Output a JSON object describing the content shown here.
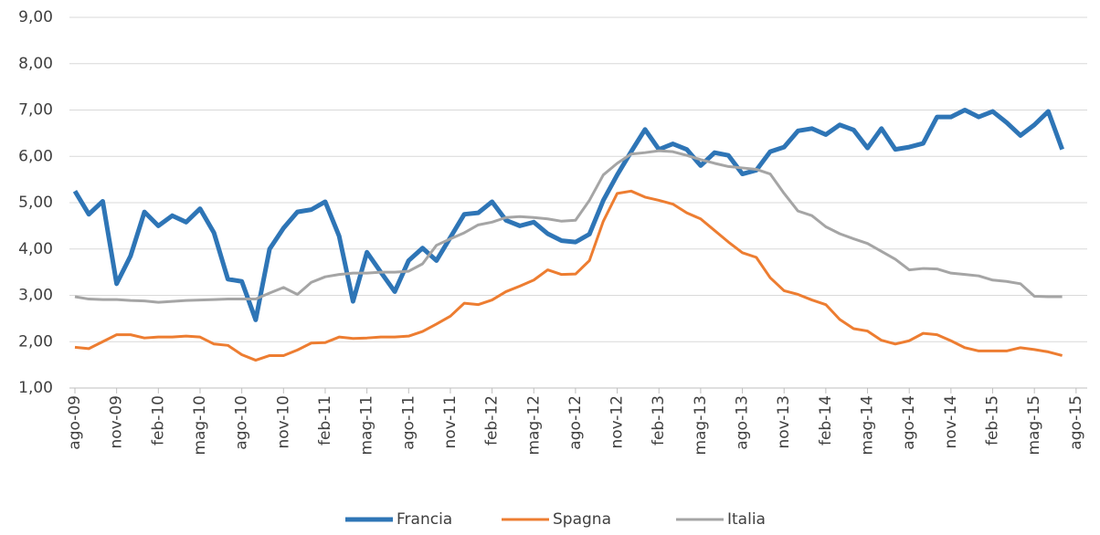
{
  "chart_data": {
    "type": "line",
    "categories": [
      "ago-09",
      null,
      null,
      "nov-09",
      null,
      null,
      "feb-10",
      null,
      null,
      "mag-10",
      null,
      null,
      "ago-10",
      null,
      null,
      "nov-10",
      null,
      null,
      "feb-11",
      null,
      null,
      "mag-11",
      null,
      null,
      "ago-11",
      null,
      null,
      "nov-11",
      null,
      null,
      "feb-12",
      null,
      null,
      "mag-12",
      null,
      null,
      "ago-12",
      null,
      null,
      "nov-12",
      null,
      null,
      "feb-13",
      null,
      null,
      "mag-13",
      null,
      null,
      "ago-13",
      null,
      null,
      "nov-13",
      null,
      null,
      "feb-14",
      null,
      null,
      "mag-14",
      null,
      null,
      "ago-14",
      null,
      null,
      "nov-14",
      null,
      null,
      "feb-15",
      null,
      null,
      "mag-15",
      null,
      null,
      "ago-15"
    ],
    "series": [
      {
        "name": "Francia",
        "color": "#2e75b6",
        "values": [
          5.25,
          4.75,
          5.03,
          3.25,
          3.85,
          4.8,
          4.5,
          4.72,
          4.58,
          4.87,
          4.35,
          3.35,
          3.3,
          2.47,
          4.0,
          4.45,
          4.8,
          4.85,
          5.02,
          4.28,
          2.87,
          3.93,
          3.5,
          3.08,
          3.75,
          4.02,
          3.75,
          4.25,
          4.75,
          4.78,
          5.02,
          4.62,
          4.5,
          4.58,
          4.33,
          4.18,
          4.15,
          4.32,
          5.05,
          5.6,
          6.1,
          6.58,
          6.15,
          6.27,
          6.15,
          5.8,
          6.08,
          6.02,
          5.62,
          5.7,
          6.1,
          6.2,
          6.55,
          6.6,
          6.47,
          6.68,
          6.57,
          6.18,
          6.6,
          6.15,
          6.2,
          6.28,
          6.85,
          6.85,
          7.0,
          6.85,
          6.97,
          6.73,
          6.45,
          6.68,
          6.97,
          6.15,
          null
        ]
      },
      {
        "name": "Spagna",
        "color": "#ed7d31",
        "values": [
          1.88,
          1.85,
          2.0,
          2.15,
          2.15,
          2.08,
          2.1,
          2.1,
          2.12,
          2.1,
          1.95,
          1.92,
          1.72,
          1.6,
          1.7,
          1.7,
          1.82,
          1.97,
          1.98,
          2.1,
          2.07,
          2.08,
          2.1,
          2.1,
          2.12,
          2.22,
          2.38,
          2.55,
          2.83,
          2.8,
          2.9,
          3.08,
          3.2,
          3.33,
          3.55,
          3.45,
          3.46,
          3.75,
          4.6,
          5.2,
          5.25,
          5.12,
          5.05,
          4.97,
          4.78,
          4.65,
          4.4,
          4.15,
          3.92,
          3.82,
          3.38,
          3.1,
          3.02,
          2.9,
          2.8,
          2.48,
          2.28,
          2.23,
          2.03,
          1.95,
          2.02,
          2.18,
          2.15,
          2.02,
          1.87,
          1.8,
          1.8,
          1.8,
          1.87,
          1.83,
          1.78,
          1.7,
          null
        ]
      },
      {
        "name": "Italia",
        "color": "#a5a5a5",
        "values": [
          2.97,
          2.92,
          2.91,
          2.91,
          2.89,
          2.88,
          2.85,
          2.87,
          2.89,
          2.9,
          2.91,
          2.92,
          2.92,
          2.92,
          3.05,
          3.17,
          3.02,
          3.28,
          3.4,
          3.45,
          3.48,
          3.48,
          3.5,
          3.5,
          3.52,
          3.68,
          4.08,
          4.22,
          4.35,
          4.52,
          4.58,
          4.68,
          4.7,
          4.68,
          4.65,
          4.6,
          4.62,
          5.05,
          5.6,
          5.85,
          6.05,
          6.08,
          6.12,
          6.1,
          6.02,
          5.93,
          5.85,
          5.78,
          5.75,
          5.72,
          5.62,
          5.2,
          4.82,
          4.72,
          4.48,
          4.33,
          4.22,
          4.12,
          3.95,
          3.78,
          3.55,
          3.58,
          3.57,
          3.48,
          3.45,
          3.42,
          3.33,
          3.3,
          3.25,
          2.98,
          2.97,
          2.97,
          null
        ]
      }
    ],
    "ylim": [
      1,
      9
    ],
    "yticks": [
      {
        "value": 1,
        "label": "1,00"
      },
      {
        "value": 2,
        "label": "2,00"
      },
      {
        "value": 3,
        "label": "3,00"
      },
      {
        "value": 4,
        "label": "4,00"
      },
      {
        "value": 5,
        "label": "5,00"
      },
      {
        "value": 6,
        "label": "6,00"
      },
      {
        "value": 7,
        "label": "7,00"
      },
      {
        "value": 8,
        "label": "8,00"
      },
      {
        "value": 9,
        "label": "9,00"
      }
    ],
    "grid": true,
    "legend": "bottom"
  }
}
